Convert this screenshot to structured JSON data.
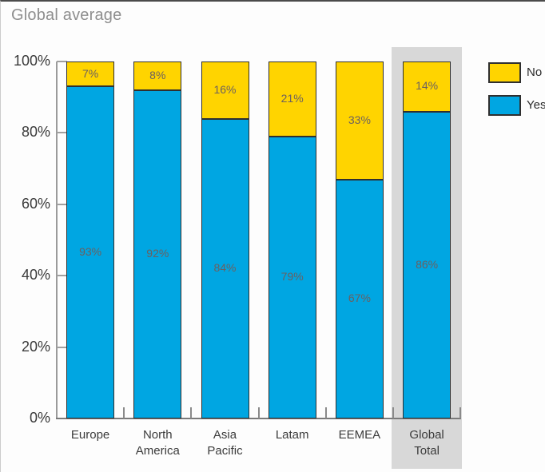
{
  "page": {
    "title": "Global average"
  },
  "legend": {
    "items": [
      {
        "label": "No",
        "color": "#FFD400"
      },
      {
        "label": "Yes",
        "color": "#00A6E2"
      }
    ]
  },
  "colors": {
    "yes": "#00A6E2",
    "no": "#FFD400",
    "bar_border": "#2F2F2F",
    "highlight": "#D8D8D8",
    "bar_label": "#6B6060",
    "axis": "#9B9B9B",
    "title": "#8E8E8E"
  },
  "chart_data": {
    "type": "bar",
    "stacked": true,
    "title": "Global average",
    "categories": [
      "Europe",
      "North\nAmerica",
      "Asia\nPacific",
      "Latam",
      "EEMEA",
      "Global\nTotal"
    ],
    "series": [
      {
        "name": "Yes",
        "color": "#00A6E2",
        "values": [
          93,
          92,
          84,
          79,
          67,
          86
        ]
      },
      {
        "name": "No",
        "color": "#FFD400",
        "values": [
          7,
          8,
          16,
          21,
          33,
          14
        ]
      }
    ],
    "data_labels": {
      "Yes": [
        "93%",
        "92%",
        "84%",
        "79%",
        "67%",
        "86%"
      ],
      "No": [
        "7%",
        "8%",
        "16%",
        "21%",
        "33%",
        "14%"
      ]
    },
    "ylabel": "",
    "xlabel": "",
    "ylim": [
      0,
      100
    ],
    "y_ticks": [
      "100%",
      "80%",
      "60%",
      "40%",
      "20%",
      "0%"
    ],
    "unit": "%",
    "grid": false,
    "legend_position": "top-right",
    "legend_entries": [
      "No",
      "Yes"
    ],
    "highlighted_category": "Global Total",
    "highlight_color": "#D8D8D8"
  }
}
